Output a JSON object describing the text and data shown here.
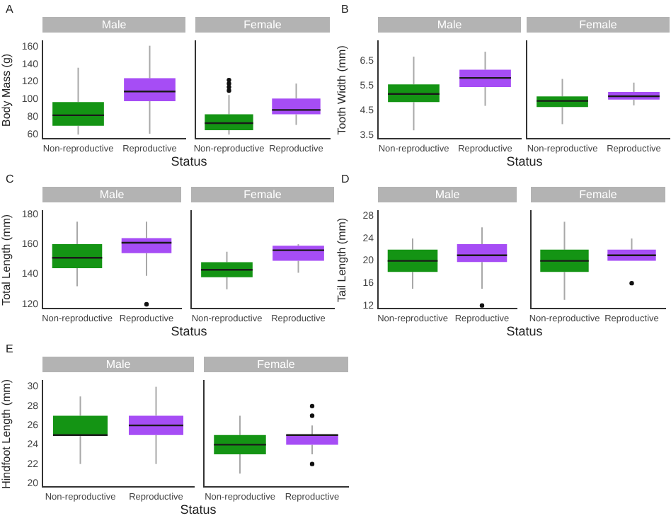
{
  "chart_data": [
    {
      "type": "box",
      "title": "Male",
      "ylabel": "Body Mass (g)",
      "xlabel": "Status",
      "annotations": [
        "A"
      ],
      "categories": [
        "Non-reproductive",
        "Reproductive"
      ],
      "colors": [
        "#149414",
        "#a64df5"
      ],
      "ylim": [
        55,
        166
      ],
      "yticks": [
        60,
        80,
        100,
        120,
        140,
        160
      ],
      "boxes": [
        {
          "low": 60,
          "q1": 70,
          "median": 82,
          "q3": 97,
          "high": 136
        },
        {
          "low": 61,
          "q1": 98,
          "median": 109,
          "q3": 124,
          "high": 161
        }
      ]
    },
    {
      "type": "box",
      "title": "Female",
      "tick_labels": "x",
      "categories": [
        "Non-reproductive",
        "Reproductive"
      ],
      "colors": [
        "#149414",
        "#a64df5"
      ],
      "ylim": [
        55,
        166
      ],
      "yticks": [
        60,
        80,
        100,
        120,
        140,
        160
      ],
      "boxes": [
        {
          "low": 60,
          "q1": 65,
          "median": 73,
          "q3": 83,
          "high": 105,
          "outliers": [
            110,
            114,
            118,
            122
          ]
        },
        {
          "low": 71,
          "q1": 83,
          "median": 88,
          "q3": 101,
          "high": 118
        }
      ]
    },
    {
      "type": "box",
      "title": "Male",
      "ylabel": "Tooth Width (mm)",
      "xlabel": "Status",
      "annotations": [
        "B"
      ],
      "categories": [
        "Non-reproductive",
        "Reproductive"
      ],
      "colors": [
        "#149414",
        "#a64df5"
      ],
      "ylim": [
        3.35,
        7.3
      ],
      "yticks": [
        3.5,
        4.5,
        5.5,
        6.5
      ],
      "boxes": [
        {
          "low": 3.7,
          "q1": 4.84,
          "median": 5.17,
          "q3": 5.56,
          "high": 6.68
        },
        {
          "low": 4.69,
          "q1": 5.45,
          "median": 5.82,
          "q3": 6.15,
          "high": 6.88
        }
      ]
    },
    {
      "type": "box",
      "title": "Female",
      "tick_labels": "x",
      "categories": [
        "Non-reproductive",
        "Reproductive"
      ],
      "colors": [
        "#149414",
        "#a64df5"
      ],
      "ylim": [
        3.35,
        7.3
      ],
      "yticks": [
        3.5,
        4.5,
        5.5,
        6.5
      ],
      "boxes": [
        {
          "low": 3.95,
          "q1": 4.64,
          "median": 4.89,
          "q3": 5.07,
          "high": 5.78
        },
        {
          "low": 4.71,
          "q1": 4.94,
          "median": 5.08,
          "q3": 5.25,
          "high": 5.63
        }
      ]
    },
    {
      "type": "box",
      "title": "Male",
      "ylabel": "Total Length (mm)",
      "xlabel": "Status",
      "annotations": [
        "C"
      ],
      "categories": [
        "Non-reproductive",
        "Reproductive"
      ],
      "colors": [
        "#149414",
        "#a64df5"
      ],
      "ylim": [
        117,
        182
      ],
      "yticks": [
        120,
        140,
        160,
        180
      ],
      "boxes": [
        {
          "low": 132,
          "q1": 144,
          "median": 151,
          "q3": 160,
          "high": 175
        },
        {
          "low": 139,
          "q1": 154,
          "median": 161,
          "q3": 164,
          "high": 175,
          "outliers": [
            120
          ]
        }
      ]
    },
    {
      "type": "box",
      "title": "Female",
      "tick_labels": "x",
      "categories": [
        "Non-reproductive",
        "Reproductive"
      ],
      "colors": [
        "#149414",
        "#a64df5"
      ],
      "ylim": [
        117,
        182
      ],
      "yticks": [
        120,
        140,
        160,
        180
      ],
      "boxes": [
        {
          "low": 130,
          "q1": 138,
          "median": 143,
          "q3": 148,
          "high": 155
        },
        {
          "low": 141,
          "q1": 149,
          "median": 156,
          "q3": 159,
          "high": 160
        }
      ]
    },
    {
      "type": "box",
      "title": "Male",
      "ylabel": "Tail Length (mm)",
      "xlabel": "Status",
      "annotations": [
        "D"
      ],
      "categories": [
        "Non-reproductive",
        "Reproductive"
      ],
      "colors": [
        "#149414",
        "#a64df5"
      ],
      "ylim": [
        11.4,
        28.9
      ],
      "yticks": [
        12,
        16,
        20,
        24,
        28
      ],
      "boxes": [
        {
          "low": 15,
          "q1": 18,
          "median": 20,
          "q3": 22,
          "high": 24
        },
        {
          "low": 15,
          "q1": 19.8,
          "median": 21,
          "q3": 23,
          "high": 26,
          "outliers": [
            12
          ]
        }
      ]
    },
    {
      "type": "box",
      "title": "Female",
      "tick_labels": "x",
      "categories": [
        "Non-reproductive",
        "Reproductive"
      ],
      "colors": [
        "#149414",
        "#a64df5"
      ],
      "ylim": [
        11.4,
        28.9
      ],
      "yticks": [
        12,
        16,
        20,
        24,
        28
      ],
      "boxes": [
        {
          "low": 13,
          "q1": 18,
          "median": 20,
          "q3": 22,
          "high": 27
        },
        {
          "low": 20,
          "q1": 20,
          "median": 21,
          "q3": 22,
          "high": 24,
          "outliers": [
            16
          ]
        }
      ]
    },
    {
      "type": "box",
      "title": "Male",
      "ylabel": "Hindfoot Length (mm)",
      "xlabel": "Status",
      "annotations": [
        "E"
      ],
      "categories": [
        "Non-reproductive",
        "Reproductive"
      ],
      "colors": [
        "#149414",
        "#a64df5"
      ],
      "ylim": [
        19.6,
        30.6
      ],
      "yticks": [
        20,
        22,
        24,
        26,
        28,
        30
      ],
      "boxes": [
        {
          "low": 22,
          "q1": 25,
          "median": 25,
          "q3": 27,
          "high": 29
        },
        {
          "low": 22,
          "q1": 25,
          "median": 26,
          "q3": 27,
          "high": 30
        }
      ]
    },
    {
      "type": "box",
      "title": "Female",
      "tick_labels": "x",
      "categories": [
        "Non-reproductive",
        "Reproductive"
      ],
      "colors": [
        "#149414",
        "#a64df5"
      ],
      "ylim": [
        19.6,
        30.6
      ],
      "yticks": [
        20,
        22,
        24,
        26,
        28,
        30
      ],
      "boxes": [
        {
          "low": 21,
          "q1": 23,
          "median": 24,
          "q3": 25,
          "high": 27
        },
        {
          "low": 23,
          "q1": 24,
          "median": 25,
          "q3": 25,
          "high": 26,
          "outliers": [
            22,
            27,
            28
          ]
        }
      ]
    }
  ]
}
